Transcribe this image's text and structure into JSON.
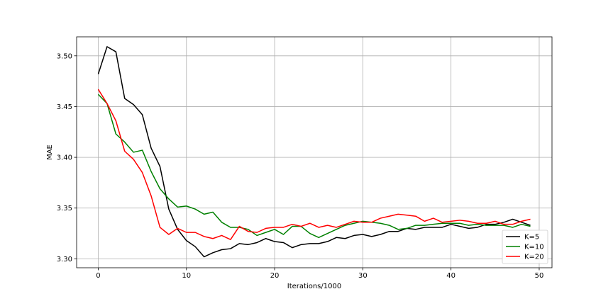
{
  "chart_data": {
    "type": "line",
    "title": "",
    "xlabel": "Iterations/1000",
    "ylabel": "MAE",
    "xlim": [
      -2.45,
      51.45
    ],
    "ylim": [
      3.2912,
      3.5187
    ],
    "xticks": [
      0,
      10,
      20,
      30,
      40,
      50
    ],
    "yticks": [
      3.3,
      3.35,
      3.4,
      3.45,
      3.5
    ],
    "xtick_labels": [
      "0",
      "10",
      "20",
      "30",
      "40",
      "50"
    ],
    "ytick_labels": [
      "3.30",
      "3.35",
      "3.40",
      "3.45",
      "3.50"
    ],
    "grid": true,
    "legend_position": "lower-right",
    "x": [
      0,
      1,
      2,
      3,
      4,
      5,
      6,
      7,
      8,
      9,
      10,
      11,
      12,
      13,
      14,
      15,
      16,
      17,
      18,
      19,
      20,
      21,
      22,
      23,
      24,
      25,
      26,
      27,
      28,
      29,
      30,
      31,
      32,
      33,
      34,
      35,
      36,
      37,
      38,
      39,
      40,
      41,
      42,
      43,
      44,
      45,
      46,
      47,
      48,
      49
    ],
    "series": [
      {
        "name": "K=5",
        "color": "#000000",
        "values": [
          3.482,
          3.509,
          3.504,
          3.458,
          3.452,
          3.442,
          3.409,
          3.391,
          3.349,
          3.329,
          3.318,
          3.312,
          3.302,
          3.306,
          3.309,
          3.31,
          3.315,
          3.314,
          3.316,
          3.32,
          3.317,
          3.316,
          3.311,
          3.314,
          3.315,
          3.315,
          3.317,
          3.321,
          3.32,
          3.323,
          3.324,
          3.322,
          3.324,
          3.327,
          3.327,
          3.33,
          3.329,
          3.331,
          3.331,
          3.331,
          3.334,
          3.332,
          3.33,
          3.331,
          3.334,
          3.334,
          3.336,
          3.339,
          3.336,
          3.333
        ]
      },
      {
        "name": "K=10",
        "color": "#008000",
        "values": [
          3.462,
          3.453,
          3.423,
          3.415,
          3.405,
          3.407,
          3.386,
          3.369,
          3.359,
          3.351,
          3.352,
          3.349,
          3.344,
          3.346,
          3.336,
          3.331,
          3.331,
          3.329,
          3.323,
          3.326,
          3.329,
          3.324,
          3.332,
          3.332,
          3.325,
          3.321,
          3.325,
          3.329,
          3.333,
          3.335,
          3.337,
          3.336,
          3.335,
          3.333,
          3.329,
          3.33,
          3.333,
          3.333,
          3.334,
          3.335,
          3.335,
          3.335,
          3.333,
          3.334,
          3.333,
          3.333,
          3.333,
          3.331,
          3.334,
          3.332
        ]
      },
      {
        "name": "K=20",
        "color": "#ff0000",
        "values": [
          3.467,
          3.453,
          3.436,
          3.406,
          3.398,
          3.385,
          3.362,
          3.331,
          3.324,
          3.33,
          3.326,
          3.326,
          3.322,
          3.32,
          3.323,
          3.319,
          3.332,
          3.327,
          3.326,
          3.33,
          3.331,
          3.331,
          3.334,
          3.332,
          3.335,
          3.331,
          3.333,
          3.331,
          3.334,
          3.337,
          3.336,
          3.336,
          3.34,
          3.342,
          3.344,
          3.343,
          3.342,
          3.337,
          3.34,
          3.336,
          3.337,
          3.338,
          3.337,
          3.335,
          3.335,
          3.337,
          3.334,
          3.334,
          3.337,
          3.339
        ]
      }
    ]
  }
}
